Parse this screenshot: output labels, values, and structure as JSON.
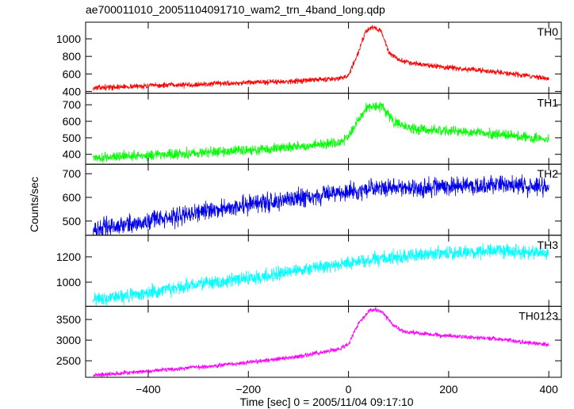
{
  "figure": {
    "file_title": "ae700011010_20051104091710_wam2_trn_4band_long.qdp",
    "y_label": "Counts/sec",
    "x_label": "Time [sec] 0 = 2005/11/04 09:17:10"
  },
  "chart_data": [
    {
      "type": "line",
      "title": "TH0",
      "color": "#ff0000",
      "xlim": [
        -525,
        425
      ],
      "ylim": [
        380,
        1190
      ],
      "yticks": [
        400,
        600,
        800,
        1000
      ],
      "ytick_labels": [
        "400",
        "600",
        "800",
        "1000"
      ],
      "xticks": [
        -400,
        -200,
        0,
        200,
        400
      ],
      "trend": {
        "x": [
          -510,
          -400,
          -300,
          -200,
          -100,
          -20,
          0,
          20,
          35,
          50,
          65,
          80,
          100,
          130,
          200,
          300,
          400
        ],
        "y": [
          440,
          465,
          480,
          500,
          520,
          550,
          580,
          850,
          1100,
          1130,
          1090,
          850,
          760,
          720,
          670,
          620,
          550
        ]
      },
      "noise": 25
    },
    {
      "type": "line",
      "title": "TH1",
      "color": "#00ff00",
      "xlim": [
        -525,
        425
      ],
      "ylim": [
        340,
        770
      ],
      "yticks": [
        400,
        500,
        600,
        700
      ],
      "ytick_labels": [
        "400",
        "500",
        "600",
        "700"
      ],
      "xticks": [
        -400,
        -200,
        0,
        200,
        400
      ],
      "trend": {
        "x": [
          -510,
          -400,
          -300,
          -200,
          -100,
          -20,
          0,
          20,
          40,
          55,
          70,
          90,
          120,
          200,
          300,
          400
        ],
        "y": [
          380,
          395,
          410,
          425,
          445,
          470,
          510,
          610,
          690,
          700,
          680,
          600,
          560,
          540,
          520,
          490
        ]
      },
      "noise": 25
    },
    {
      "type": "line",
      "title": "TH2",
      "color": "#0000ee",
      "xlim": [
        -525,
        425
      ],
      "ylim": [
        440,
        740
      ],
      "yticks": [
        500,
        600,
        700
      ],
      "ytick_labels": [
        "500",
        "600",
        "700"
      ],
      "xticks": [
        -400,
        -200,
        0,
        200,
        400
      ],
      "trend": {
        "x": [
          -510,
          -400,
          -300,
          -200,
          -100,
          0,
          100,
          200,
          300,
          400
        ],
        "y": [
          465,
          500,
          535,
          570,
          595,
          625,
          640,
          645,
          655,
          640
        ]
      },
      "noise": 32
    },
    {
      "type": "line",
      "title": "TH3",
      "color": "#00ffff",
      "xlim": [
        -525,
        425
      ],
      "ylim": [
        810,
        1370
      ],
      "yticks": [
        1000,
        1200
      ],
      "ytick_labels": [
        "1000",
        "1200"
      ],
      "xticks": [
        -400,
        -200,
        0,
        200,
        400
      ],
      "trend": {
        "x": [
          -510,
          -400,
          -300,
          -200,
          -100,
          0,
          100,
          200,
          300,
          400
        ],
        "y": [
          860,
          920,
          980,
          1030,
          1090,
          1150,
          1200,
          1230,
          1240,
          1235
        ]
      },
      "noise": 45
    },
    {
      "type": "line",
      "title": "TH0123",
      "color": "#ff00ff",
      "xlim": [
        -525,
        425
      ],
      "ylim": [
        2100,
        3820
      ],
      "yticks": [
        2500,
        3000,
        3500
      ],
      "ytick_labels": [
        "2500",
        "3000",
        "3500"
      ],
      "xticks": [
        -400,
        -200,
        0,
        200,
        400
      ],
      "xtick_labels": [
        "−400",
        "−200",
        "0",
        "200",
        "400"
      ],
      "trend": {
        "x": [
          -510,
          -400,
          -300,
          -200,
          -100,
          -20,
          0,
          20,
          40,
          55,
          70,
          90,
          110,
          150,
          200,
          300,
          400
        ],
        "y": [
          2150,
          2250,
          2350,
          2460,
          2600,
          2780,
          2900,
          3400,
          3700,
          3760,
          3650,
          3350,
          3200,
          3150,
          3100,
          3030,
          2880
        ]
      },
      "noise": 45
    }
  ]
}
